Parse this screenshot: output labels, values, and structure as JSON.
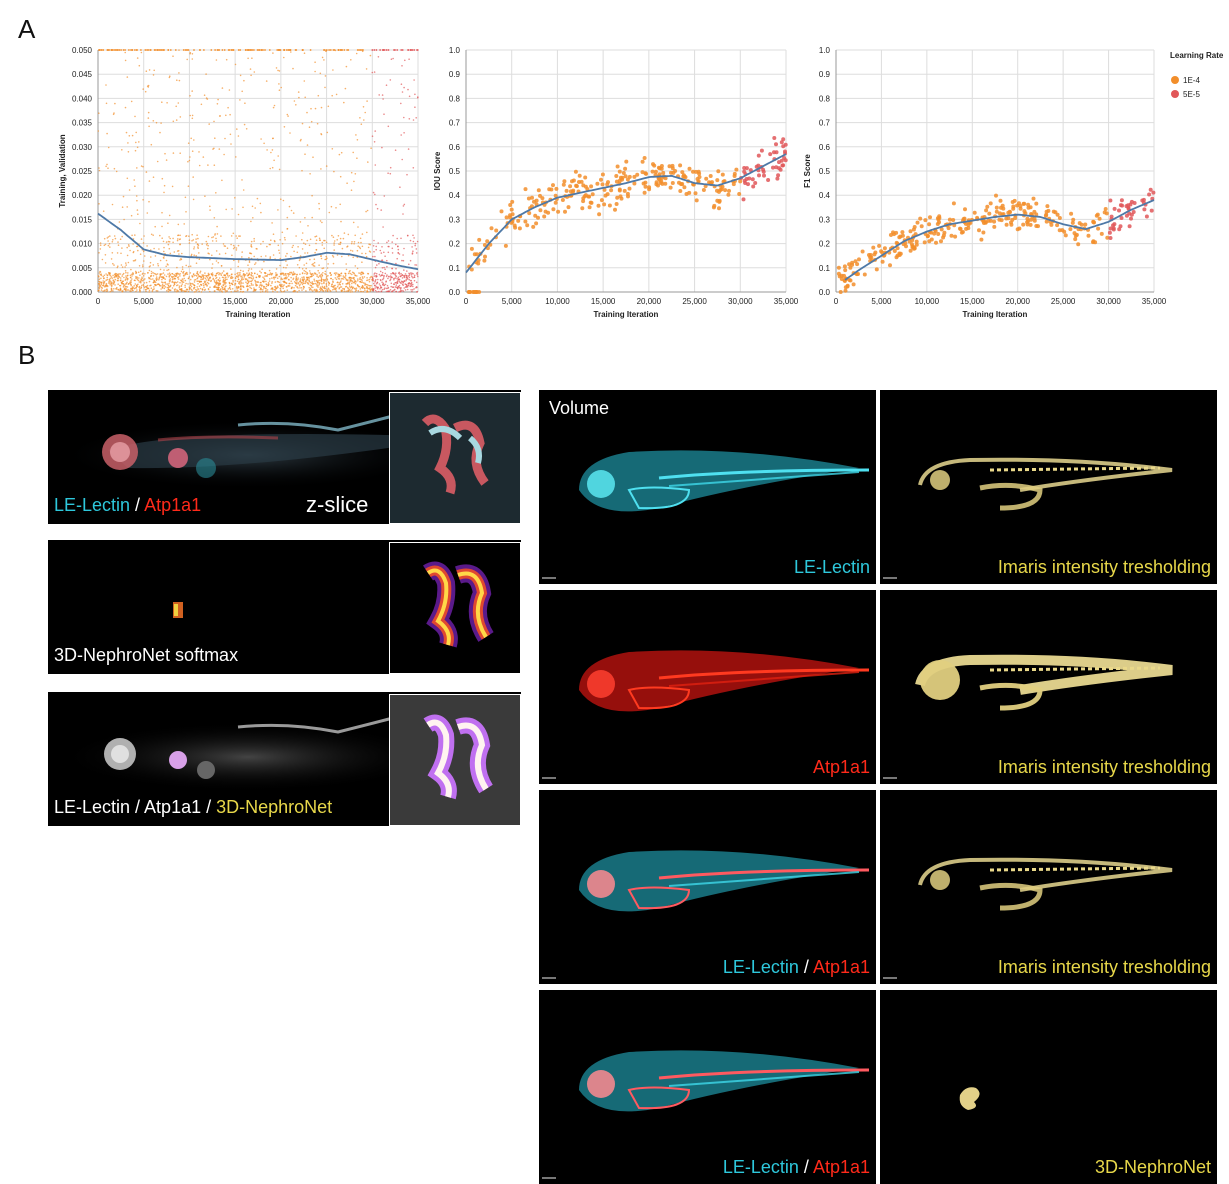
{
  "panel_a": {
    "letter": "A"
  },
  "panel_b": {
    "letter": "B"
  },
  "chart_data": [
    {
      "type": "scatter",
      "xlabel": "Training Iteration",
      "ylabel": "Training, Validation",
      "xlim": [
        0,
        35000
      ],
      "ylim": [
        0,
        0.05
      ],
      "xticks": [
        "0",
        "5,000",
        "10,000",
        "15,000",
        "20,000",
        "25,000",
        "30,000",
        "35,000"
      ],
      "yticks": [
        "0.000",
        "0.005",
        "0.010",
        "0.015",
        "0.020",
        "0.025",
        "0.030",
        "0.035",
        "0.040",
        "0.045",
        "0.050"
      ],
      "grid": true,
      "series": [
        {
          "name": "1E-4",
          "color": "#f28e2b",
          "x_range": [
            0,
            30000
          ]
        },
        {
          "name": "5E-5",
          "color": "#e15759",
          "x_range": [
            30000,
            35000
          ]
        }
      ],
      "trend": {
        "color": "#4e79a7",
        "x": [
          0,
          2500,
          5000,
          7500,
          10000,
          12500,
          15000,
          17500,
          20000,
          22500,
          25000,
          27500,
          30000,
          32500,
          35000
        ],
        "y": [
          0.0162,
          0.0128,
          0.0088,
          0.0076,
          0.0072,
          0.007,
          0.0068,
          0.0067,
          0.0066,
          0.0072,
          0.0081,
          0.0078,
          0.0067,
          0.0056,
          0.0047
        ]
      }
    },
    {
      "type": "scatter",
      "xlabel": "Training Iteration",
      "ylabel": "IOU Score",
      "xlim": [
        0,
        35000
      ],
      "ylim": [
        0,
        1.0
      ],
      "xticks": [
        "0",
        "5,000",
        "10,000",
        "15,000",
        "20,000",
        "25,000",
        "30,000",
        "35,000"
      ],
      "yticks": [
        "0.0",
        "0.1",
        "0.2",
        "0.3",
        "0.4",
        "0.5",
        "0.6",
        "0.7",
        "0.8",
        "0.9",
        "1.0"
      ],
      "grid": true,
      "series": [
        {
          "name": "1E-4",
          "color": "#f28e2b",
          "x_range": [
            0,
            30000
          ]
        },
        {
          "name": "5E-5",
          "color": "#e15759",
          "x_range": [
            30000,
            35000
          ]
        }
      ],
      "trend": {
        "color": "#4e79a7",
        "x": [
          0,
          2500,
          5000,
          7500,
          10000,
          12500,
          15000,
          17500,
          20000,
          22500,
          25000,
          27500,
          30000,
          32500,
          35000
        ],
        "y": [
          0.08,
          0.2,
          0.3,
          0.35,
          0.39,
          0.41,
          0.43,
          0.45,
          0.475,
          0.48,
          0.45,
          0.44,
          0.47,
          0.52,
          0.57
        ]
      }
    },
    {
      "type": "scatter",
      "xlabel": "Training Iteration",
      "ylabel": "F1 Score",
      "xlim": [
        0,
        35000
      ],
      "ylim": [
        0,
        1.0
      ],
      "xticks": [
        "0",
        "5,000",
        "10,000",
        "15,000",
        "20,000",
        "25,000",
        "30,000",
        "35,000"
      ],
      "yticks": [
        "0.0",
        "0.1",
        "0.2",
        "0.3",
        "0.4",
        "0.5",
        "0.6",
        "0.7",
        "0.8",
        "0.9",
        "1.0"
      ],
      "grid": true,
      "series": [
        {
          "name": "1E-4",
          "color": "#f28e2b",
          "x_range": [
            0,
            30000
          ]
        },
        {
          "name": "5E-5",
          "color": "#e15759",
          "x_range": [
            30000,
            35000
          ]
        }
      ],
      "trend": {
        "color": "#4e79a7",
        "x": [
          1000,
          2500,
          5000,
          7500,
          10000,
          12500,
          15000,
          17500,
          20000,
          22500,
          25000,
          27500,
          30000,
          32500,
          35000
        ],
        "y": [
          0.05,
          0.09,
          0.15,
          0.21,
          0.25,
          0.28,
          0.295,
          0.31,
          0.32,
          0.31,
          0.28,
          0.26,
          0.29,
          0.34,
          0.38
        ]
      }
    }
  ],
  "legend": {
    "title": "Learning Rate",
    "entries": [
      {
        "label": "1E-4",
        "color": "#f28e2b"
      },
      {
        "label": "5E-5",
        "color": "#e15759"
      }
    ]
  },
  "left_panels": {
    "p1": {
      "label_a": "LE-Lectin",
      "sep": " / ",
      "label_b": "Atp1a1",
      "tag": "z-slice"
    },
    "p2": {
      "label": "3D-NephroNet softmax"
    },
    "p3": {
      "label_a": "LE-Lectin / Atp1a1 / ",
      "label_b": "3D-NephroNet"
    }
  },
  "grid_panels": {
    "volume_label": "Volume",
    "rows": [
      {
        "left_a": "LE-Lectin",
        "left_sep": "",
        "left_b": "",
        "right": "Imaris intensity tresholding"
      },
      {
        "left_a": "",
        "left_sep": "",
        "left_b": "Atp1a1",
        "right": "Imaris intensity tresholding"
      },
      {
        "left_a": "LE-Lectin",
        "left_sep": " / ",
        "left_b": "Atp1a1",
        "right": "Imaris intensity tresholding"
      },
      {
        "left_a": "LE-Lectin",
        "left_sep": " / ",
        "left_b": "Atp1a1",
        "right": "3D-NephroNet"
      }
    ]
  }
}
